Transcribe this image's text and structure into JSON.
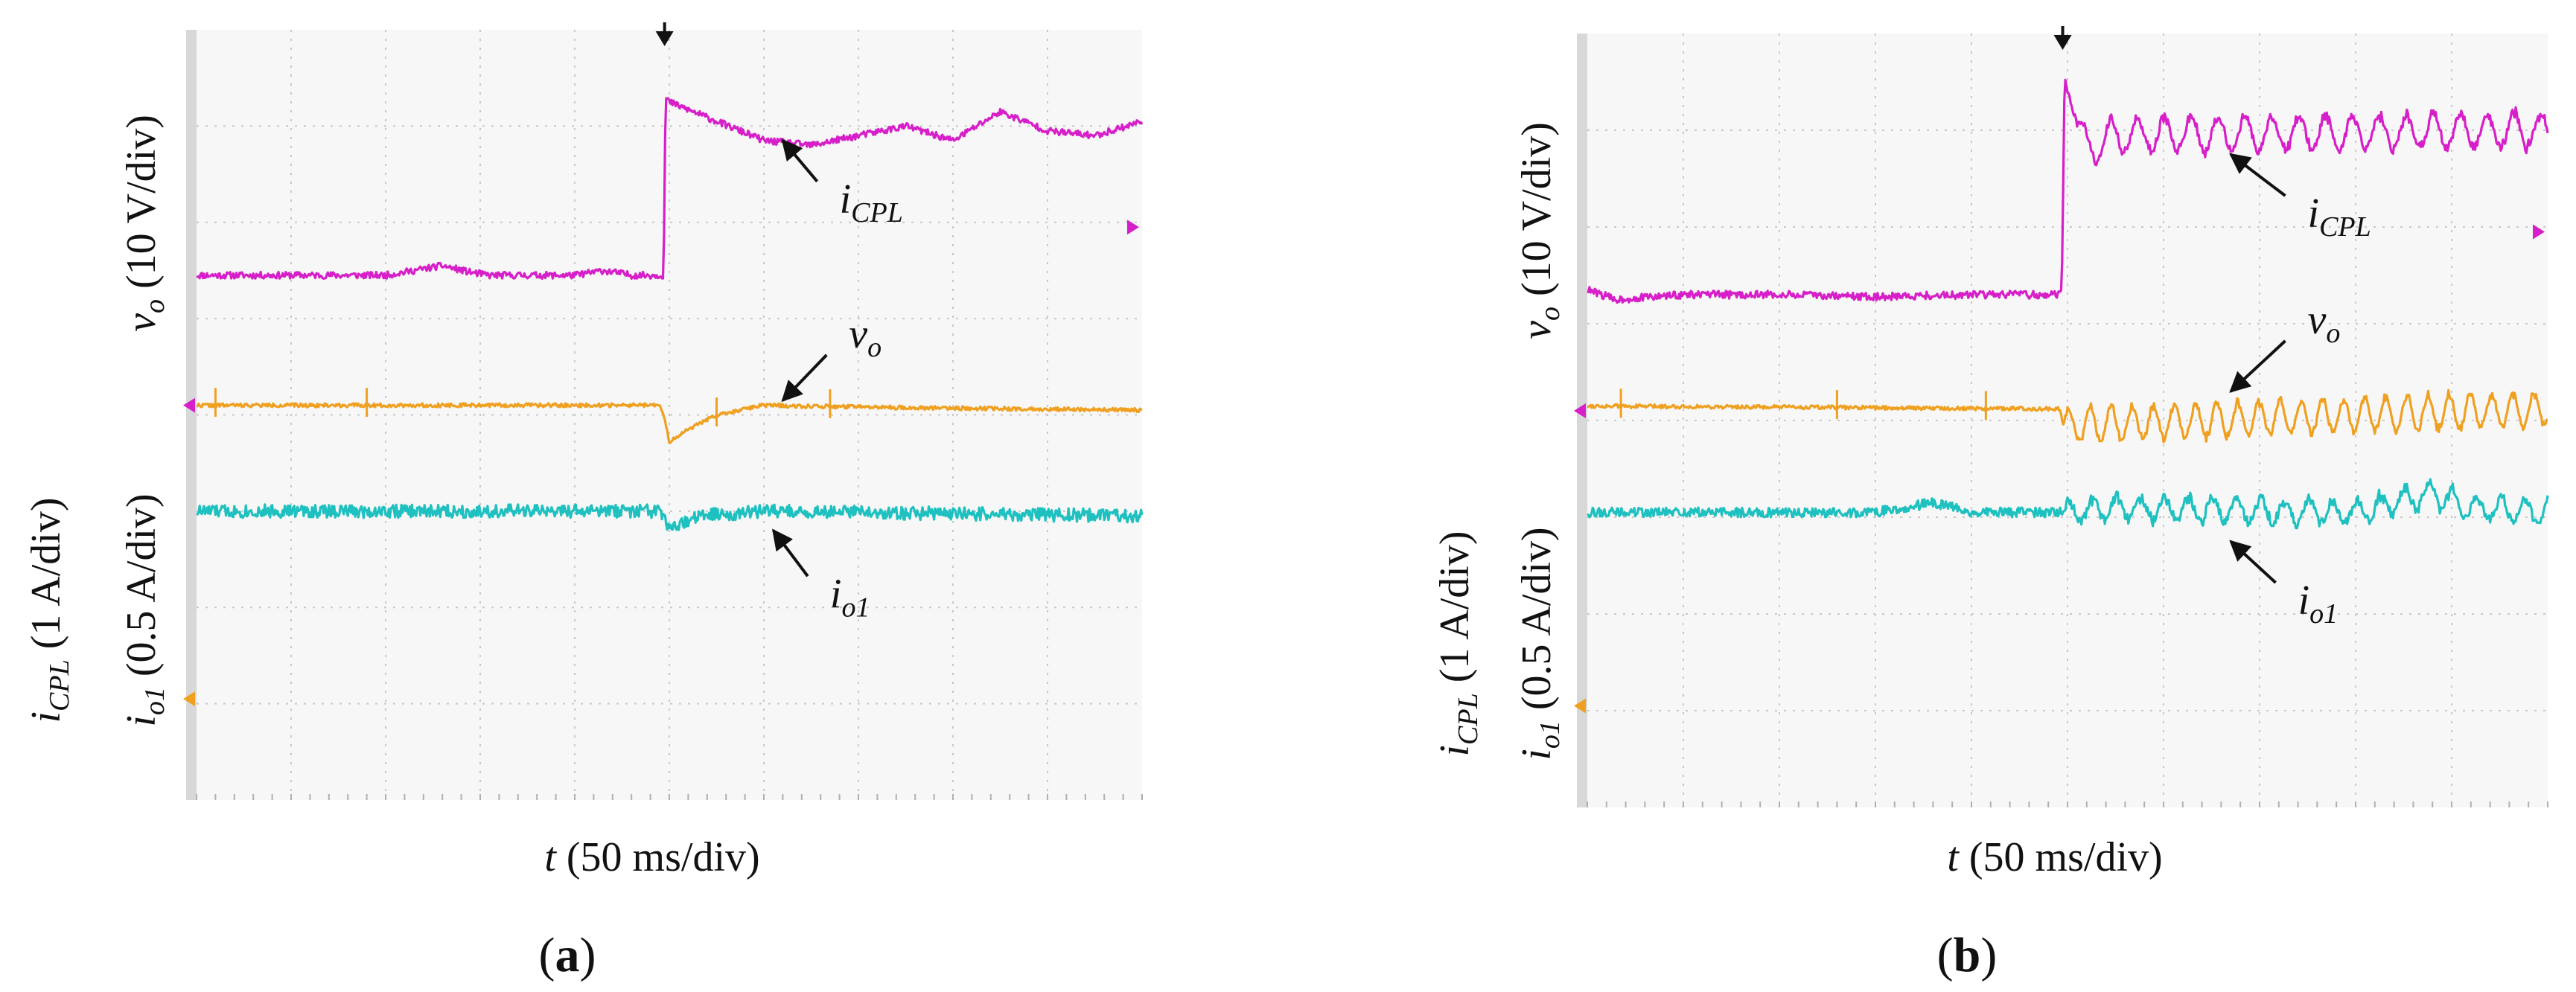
{
  "figure": {
    "panels": [
      {
        "tag": "(a)",
        "tag_letter": "a"
      },
      {
        "tag": "(b)",
        "tag_letter": "b"
      }
    ],
    "colors": {
      "screen": "#f7f7f7",
      "grid": "#c8c8c8",
      "bezel": "#d8d8d8",
      "icpl": "#d61fc8",
      "vo": "#f0a020",
      "io1": "#1ec0c0",
      "text": "#111111"
    }
  },
  "chart_data": [
    {
      "type": "line",
      "panel": "a",
      "tag": "(a)",
      "title": "",
      "xlabel": "t (50 ms/div)",
      "ylabel_upper": "vo (10 V/div)",
      "ylabel_lower_1": "iCPL (1 A/div)",
      "ylabel_lower_2": "io1 (0.5 A/div)",
      "x_divisions": 10,
      "y_divisions": 8,
      "trigger_x_div": 4.95,
      "grid": true,
      "series": [
        {
          "name": "iCPL",
          "label": "i_CPL",
          "color": "#d61fc8",
          "x_div": [
            0,
            2.0,
            2.3,
            2.6,
            2.9,
            3.1,
            4.0,
            4.3,
            4.6,
            4.94,
            4.96,
            5.0,
            5.5,
            6.0,
            6.5,
            7.0,
            7.5,
            8.0,
            8.5,
            9.0,
            9.5,
            10.0
          ],
          "y_div": [
            5.45,
            5.45,
            5.5,
            5.55,
            5.48,
            5.45,
            5.45,
            5.5,
            5.45,
            5.45,
            7.3,
            7.25,
            7.05,
            6.85,
            6.8,
            6.9,
            7.0,
            6.85,
            7.15,
            6.95,
            6.9,
            7.05
          ],
          "noise_div": 0.035,
          "seed": 11
        },
        {
          "name": "vo",
          "label": "v_o",
          "color": "#f0a020",
          "x_div": [
            0,
            4.9,
            4.95,
            5.0,
            5.2,
            5.5,
            6.0,
            7.0,
            10.0
          ],
          "y_div": [
            4.1,
            4.1,
            3.95,
            3.72,
            3.85,
            4.0,
            4.1,
            4.08,
            4.05
          ],
          "noise_div": 0.02,
          "spikes_x_div": [
            0.2,
            1.8,
            5.5,
            6.7
          ],
          "seed": 22
        },
        {
          "name": "io1",
          "label": "i_o1",
          "color": "#1ec0c0",
          "x_div": [
            0,
            4.9,
            4.95,
            5.0,
            5.3,
            6.0,
            10.0
          ],
          "y_div": [
            3.0,
            3.0,
            2.9,
            2.8,
            2.95,
            3.0,
            2.95
          ],
          "noise_div": 0.07,
          "seed": 33
        }
      ],
      "annotations": [
        {
          "label": "i_CPL",
          "text_x_div": 6.8,
          "text_y_div": 6.1,
          "arrow_to_x_div": 6.2,
          "arrow_to_y_div": 6.85
        },
        {
          "label": "v_o",
          "text_x_div": 6.9,
          "text_y_div": 4.7,
          "arrow_to_x_div": 6.2,
          "arrow_to_y_div": 4.15
        },
        {
          "label": "i_o1",
          "text_x_div": 6.7,
          "text_y_div": 2.0,
          "arrow_to_x_div": 6.1,
          "arrow_to_y_div": 2.8
        }
      ],
      "channel_markers": [
        {
          "name": "icpl-marker",
          "side": "right",
          "y_div": 5.95,
          "color": "#d61fc8"
        },
        {
          "name": "vo-marker",
          "side": "left",
          "y_div": 4.1,
          "color": "#d61fc8"
        },
        {
          "name": "io1-marker",
          "side": "left",
          "y_div": 1.05,
          "color": "#f0a020"
        }
      ]
    },
    {
      "type": "line",
      "panel": "b",
      "tag": "(b)",
      "title": "",
      "xlabel": "t (50 ms/div)",
      "ylabel_upper": "vo (10 V/div)",
      "ylabel_lower_1": "iCPL (1 A/div)",
      "ylabel_lower_2": "io1 (0.5 A/div)",
      "x_divisions": 10,
      "y_divisions": 8,
      "trigger_x_div": 4.95,
      "grid": true,
      "series": [
        {
          "name": "iCPL",
          "label": "i_CPL",
          "color": "#d61fc8",
          "x_div": [
            0,
            0.3,
            1.0,
            2.0,
            3.0,
            4.0,
            4.92,
            4.94,
            4.97,
            5.05,
            5.2,
            5.5,
            10.0
          ],
          "y_div": [
            5.35,
            5.25,
            5.3,
            5.3,
            5.28,
            5.3,
            5.3,
            5.35,
            7.55,
            7.2,
            6.8,
            6.95,
            7.0
          ],
          "noise_div": 0.04,
          "oscillation_start_div": 5.1,
          "oscillation_amp_div": 0.22,
          "oscillation_period_div": 0.28,
          "seed": 44
        },
        {
          "name": "vo",
          "label": "v_o",
          "color": "#f0a020",
          "x_div": [
            0,
            4.92,
            4.96,
            10.0
          ],
          "y_div": [
            4.15,
            4.12,
            3.95,
            4.12
          ],
          "noise_div": 0.02,
          "spikes_x_div": [
            0.35,
            2.6,
            4.15
          ],
          "oscillation_start_div": 4.96,
          "oscillation_amp_div": 0.22,
          "oscillation_period_div": 0.22,
          "seed": 55
        },
        {
          "name": "io1",
          "label": "i_o1",
          "color": "#1ec0c0",
          "x_div": [
            0,
            3.0,
            3.6,
            4.0,
            4.95,
            5.5,
            8.0,
            8.8,
            9.2,
            10.0
          ],
          "y_div": [
            3.05,
            3.05,
            3.15,
            3.05,
            3.05,
            3.1,
            3.05,
            3.25,
            3.1,
            3.05
          ],
          "noise_div": 0.05,
          "oscillation_start_div": 4.95,
          "oscillation_amp_div": 0.15,
          "oscillation_period_div": 0.25,
          "seed": 66
        }
      ],
      "annotations": [
        {
          "label": "i_CPL",
          "text_x_div": 7.5,
          "text_y_div": 6.0,
          "arrow_to_x_div": 6.7,
          "arrow_to_y_div": 6.75
        },
        {
          "label": "v_o",
          "text_x_div": 7.5,
          "text_y_div": 4.9,
          "arrow_to_x_div": 6.7,
          "arrow_to_y_div": 4.3
        },
        {
          "label": "i_o1",
          "text_x_div": 7.4,
          "text_y_div": 2.0,
          "arrow_to_x_div": 6.7,
          "arrow_to_y_div": 2.75
        }
      ],
      "channel_markers": [
        {
          "name": "icpl-marker",
          "side": "right",
          "y_div": 5.95,
          "color": "#d61fc8"
        },
        {
          "name": "vo-marker",
          "side": "left",
          "y_div": 4.1,
          "color": "#d61fc8"
        },
        {
          "name": "io1-marker",
          "side": "left",
          "y_div": 1.05,
          "color": "#f0a020"
        }
      ]
    }
  ]
}
